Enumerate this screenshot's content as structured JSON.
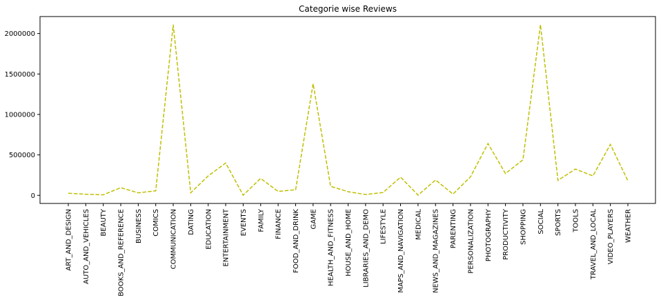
{
  "chart_data": {
    "type": "line",
    "title": "Categorie wise Reviews",
    "xlabel": "",
    "ylabel": "",
    "line_color": "#bfbf00",
    "line_style": "dashed",
    "ylim": [
      -100000,
      2210000
    ],
    "yticks": [
      0,
      500000,
      1000000,
      1500000,
      2000000
    ],
    "ytick_labels": [
      "0",
      "500000",
      "1000000",
      "1500000",
      "2000000"
    ],
    "grid": false,
    "categories": [
      "ART_AND_DESIGN",
      "AUTO_AND_VEHICLES",
      "BEAUTY",
      "BOOKS_AND_REFERENCE",
      "BUSINESS",
      "COMICS",
      "COMMUNICATION",
      "DATING",
      "EDUCATION",
      "ENTERTAINMENT",
      "EVENTS",
      "FAMILY",
      "FINANCE",
      "FOOD_AND_DRINK",
      "GAME",
      "HEALTH_AND_FITNESS",
      "HOUSE_AND_HOME",
      "LIBRARIES_AND_DEMO",
      "LIFESTYLE",
      "MAPS_AND_NAVIGATION",
      "MEDICAL",
      "NEWS_AND_MAGAZINES",
      "PARENTING",
      "PERSONALIZATION",
      "PHOTOGRAPHY",
      "PRODUCTIVITY",
      "SHOPPING",
      "SOCIAL",
      "SPORTS",
      "TOOLS",
      "TRAVEL_AND_LOCAL",
      "VIDEO_PLAYERS",
      "WEATHER"
    ],
    "values": [
      26000,
      14000,
      7000,
      95000,
      31000,
      56000,
      2110000,
      32000,
      240000,
      400000,
      2000,
      210000,
      48000,
      70000,
      1380000,
      112000,
      45000,
      11000,
      35000,
      225000,
      3000,
      190000,
      16000,
      230000,
      640000,
      270000,
      440000,
      2110000,
      185000,
      325000,
      240000,
      630000,
      180000
    ]
  }
}
